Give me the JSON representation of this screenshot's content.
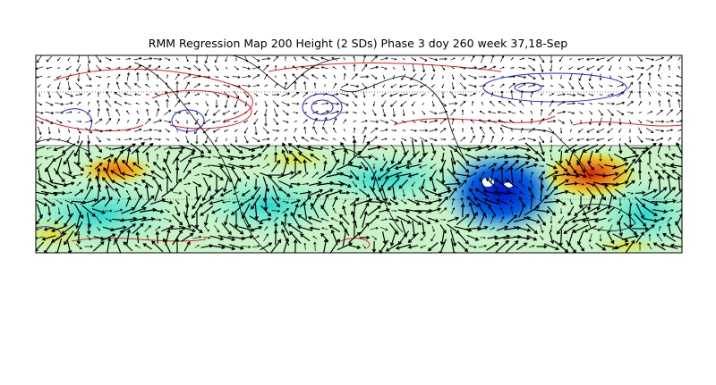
{
  "title": "RMM Regression Map 200 Height (2 SDs) Phase 3 doy 260 week 37,18-Sep"
}
